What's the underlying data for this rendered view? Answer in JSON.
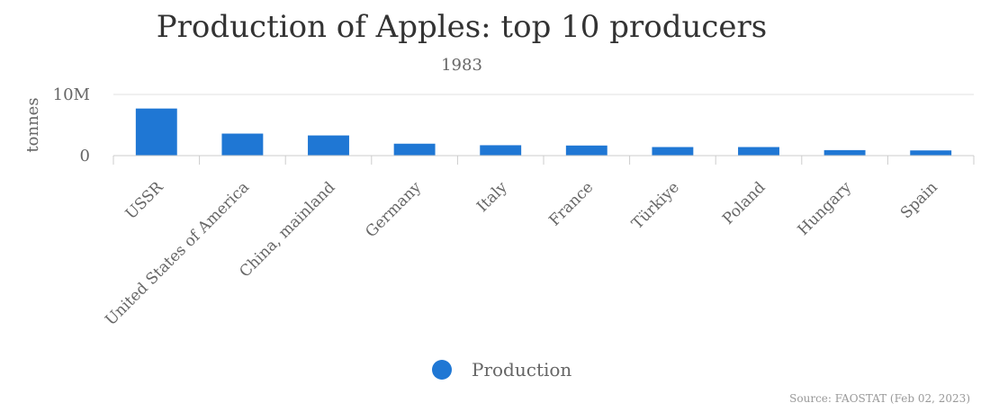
{
  "chart_data": {
    "type": "bar",
    "title": "Production of Apples: top 10 producers",
    "subtitle": "1983",
    "ylabel": "tonnes",
    "xlabel": "",
    "categories": [
      "USSR",
      "United States of America",
      "China, mainland",
      "Germany",
      "Italy",
      "France",
      "Türkiye",
      "Poland",
      "Hungary",
      "Spain"
    ],
    "series": [
      {
        "name": "Production",
        "values": [
          7700000,
          3600000,
          3300000,
          1950000,
          1700000,
          1650000,
          1400000,
          1400000,
          900000,
          850000
        ],
        "color": "#1f77d4"
      }
    ],
    "ylim": [
      0,
      10000000
    ],
    "yticks": [
      {
        "value": 0,
        "label": "0"
      },
      {
        "value": 10000000,
        "label": "10M"
      }
    ],
    "grid": true,
    "legend_position": "bottom-center",
    "source": "Source: FAOSTAT (Feb 02, 2023)"
  }
}
